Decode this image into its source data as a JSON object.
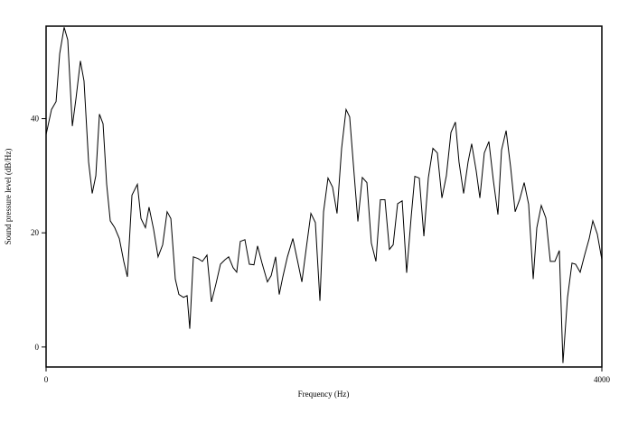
{
  "chart_data": {
    "type": "line",
    "xlabel": "Frequency (Hz)",
    "ylabel": "Sound pressure level (dB/Hz)",
    "color": "#000000",
    "x": [
      0,
      39,
      72,
      98,
      130,
      156,
      189,
      215,
      247,
      273,
      306,
      332,
      358,
      384,
      410,
      436,
      462,
      494,
      527,
      559,
      585,
      618,
      657,
      683,
      715,
      741,
      774,
      806,
      839,
      871,
      898,
      930,
      956,
      989,
      1015,
      1034,
      1060,
      1093,
      1125,
      1158,
      1190,
      1223,
      1255,
      1288,
      1314,
      1346,
      1372,
      1398,
      1431,
      1463,
      1496,
      1522,
      1554,
      1593,
      1620,
      1652,
      1678,
      1704,
      1737,
      1776,
      1808,
      1841,
      1873,
      1906,
      1938,
      1971,
      1997,
      2029,
      2062,
      2094,
      2127,
      2159,
      2185,
      2218,
      2244,
      2276,
      2309,
      2341,
      2374,
      2406,
      2439,
      2471,
      2498,
      2530,
      2563,
      2595,
      2628,
      2654,
      2686,
      2719,
      2751,
      2784,
      2816,
      2849,
      2881,
      2914,
      2946,
      2972,
      3005,
      3037,
      3063,
      3096,
      3122,
      3154,
      3187,
      3219,
      3252,
      3278,
      3311,
      3343,
      3376,
      3408,
      3441,
      3473,
      3506,
      3532,
      3564,
      3597,
      3629,
      3662,
      3694,
      3720,
      3753,
      3785,
      3811,
      3844,
      3876,
      3909,
      3935,
      3967,
      4000
    ],
    "values": [
      37.2,
      41.6,
      43.0,
      51.4,
      56.0,
      53.8,
      38.7,
      43.5,
      50.1,
      46.6,
      32.4,
      26.9,
      30.0,
      40.8,
      39.1,
      28.5,
      22.1,
      20.9,
      19.0,
      15.0,
      12.3,
      26.6,
      28.5,
      22.5,
      20.9,
      24.5,
      20.6,
      15.8,
      17.9,
      23.7,
      22.5,
      11.9,
      9.2,
      8.7,
      9.0,
      3.2,
      15.8,
      15.5,
      15.0,
      16.1,
      7.9,
      11.1,
      14.5,
      15.3,
      15.8,
      13.9,
      13.1,
      18.5,
      18.8,
      14.5,
      14.4,
      17.7,
      14.7,
      11.4,
      12.5,
      15.8,
      9.2,
      12.3,
      15.8,
      19.0,
      15.3,
      11.4,
      17.4,
      23.4,
      21.8,
      8.1,
      23.7,
      29.6,
      28.0,
      23.4,
      34.8,
      41.6,
      40.3,
      30.0,
      22.0,
      29.7,
      28.8,
      18.2,
      15.0,
      25.8,
      25.8,
      17.1,
      17.9,
      25.1,
      25.6,
      13.0,
      22.9,
      29.9,
      29.6,
      19.4,
      29.6,
      34.8,
      34.0,
      26.1,
      30.0,
      37.6,
      39.4,
      32.4,
      26.9,
      32.4,
      35.6,
      30.8,
      26.1,
      34.0,
      36.0,
      29.2,
      23.2,
      34.5,
      37.9,
      31.6,
      23.7,
      25.8,
      28.8,
      25.0,
      11.9,
      20.9,
      24.8,
      22.6,
      15.0,
      15.0,
      16.9,
      -2.8,
      8.7,
      14.7,
      14.5,
      13.1,
      16.1,
      19.0,
      22.1,
      19.8,
      15.3
    ],
    "xlim": [
      0,
      4000
    ],
    "xticks": [
      0,
      4000
    ],
    "ylim": [
      -3.5,
      56.2
    ],
    "yticks": [
      0,
      20,
      40
    ]
  }
}
